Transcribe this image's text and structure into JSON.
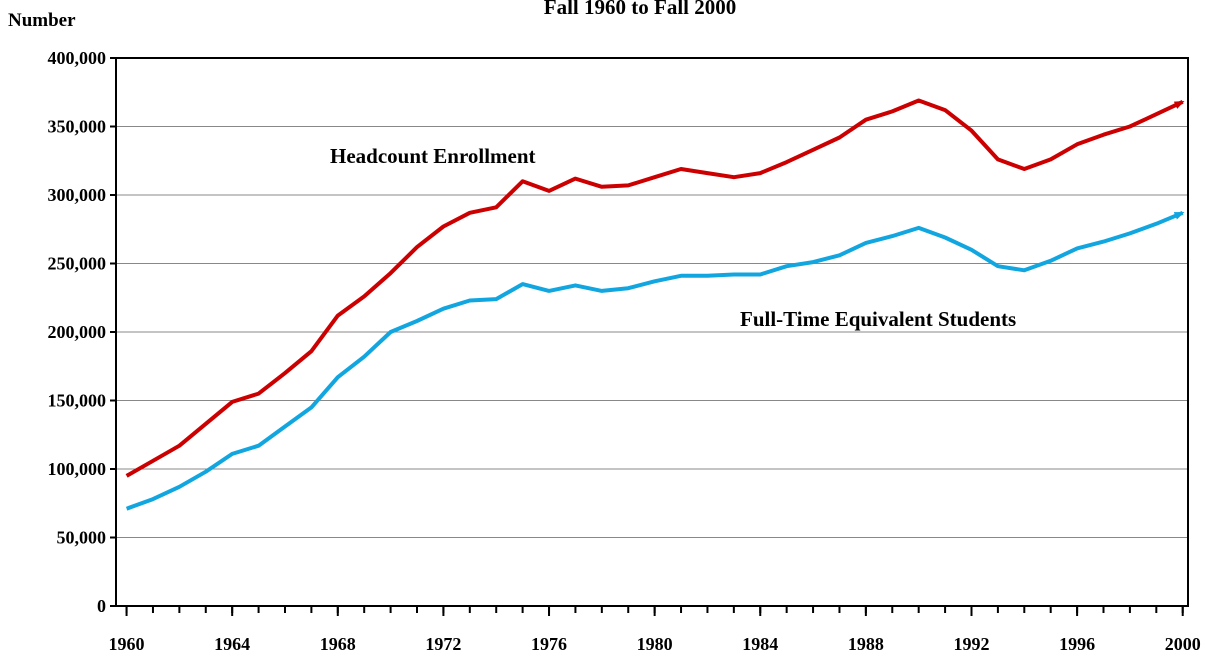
{
  "chart_data": {
    "type": "line",
    "title": "Fall 1960 to Fall 2000",
    "y_label": "Number",
    "x": [
      1960,
      1961,
      1962,
      1963,
      1964,
      1965,
      1966,
      1967,
      1968,
      1969,
      1970,
      1971,
      1972,
      1973,
      1974,
      1975,
      1976,
      1977,
      1978,
      1979,
      1980,
      1981,
      1982,
      1983,
      1984,
      1985,
      1986,
      1987,
      1988,
      1989,
      1990,
      1991,
      1992,
      1993,
      1994,
      1995,
      1996,
      1997,
      1998,
      1999,
      2000
    ],
    "series": [
      {
        "name": "Headcount Enrollment",
        "color": "#cc0000",
        "values": [
          95000,
          106000,
          117000,
          133000,
          149000,
          155000,
          170000,
          186000,
          212000,
          226000,
          243000,
          262000,
          277000,
          287000,
          291000,
          310000,
          303000,
          312000,
          306000,
          307000,
          313000,
          319000,
          316000,
          313000,
          316000,
          324000,
          333000,
          342000,
          355000,
          361000,
          369000,
          362000,
          347000,
          326000,
          319000,
          326000,
          337000,
          344000,
          350000,
          359000,
          368000
        ]
      },
      {
        "name": "Full-Time Equivalent Students",
        "color": "#12a6e0",
        "values": [
          71000,
          78000,
          87000,
          98000,
          111000,
          117000,
          131000,
          145000,
          167000,
          182000,
          200000,
          208000,
          217000,
          223000,
          224000,
          235000,
          230000,
          234000,
          230000,
          232000,
          237000,
          241000,
          241000,
          242000,
          242000,
          248000,
          251000,
          256000,
          265000,
          270000,
          276000,
          269000,
          260000,
          248000,
          245000,
          252000,
          261000,
          266000,
          272000,
          279000,
          287000
        ]
      }
    ],
    "xlim": [
      1959.6,
      2000.2
    ],
    "xticks": [
      1960,
      1964,
      1968,
      1972,
      1976,
      1980,
      1984,
      1988,
      1992,
      1996,
      2000
    ],
    "ylim": [
      0,
      400000
    ],
    "yticks": [
      0,
      {
        "value": 50000,
        "label": "50,000"
      },
      {
        "value": 100000,
        "label": "100,000"
      },
      {
        "value": 150000,
        "label": "150,000"
      },
      {
        "value": 200000,
        "label": "200,000"
      },
      {
        "value": 250000,
        "label": "250,000"
      },
      {
        "value": 300000,
        "label": "300,000"
      },
      {
        "value": 350000,
        "label": "350,000"
      },
      {
        "value": 400000,
        "label": "400,000"
      }
    ],
    "grid": true
  }
}
